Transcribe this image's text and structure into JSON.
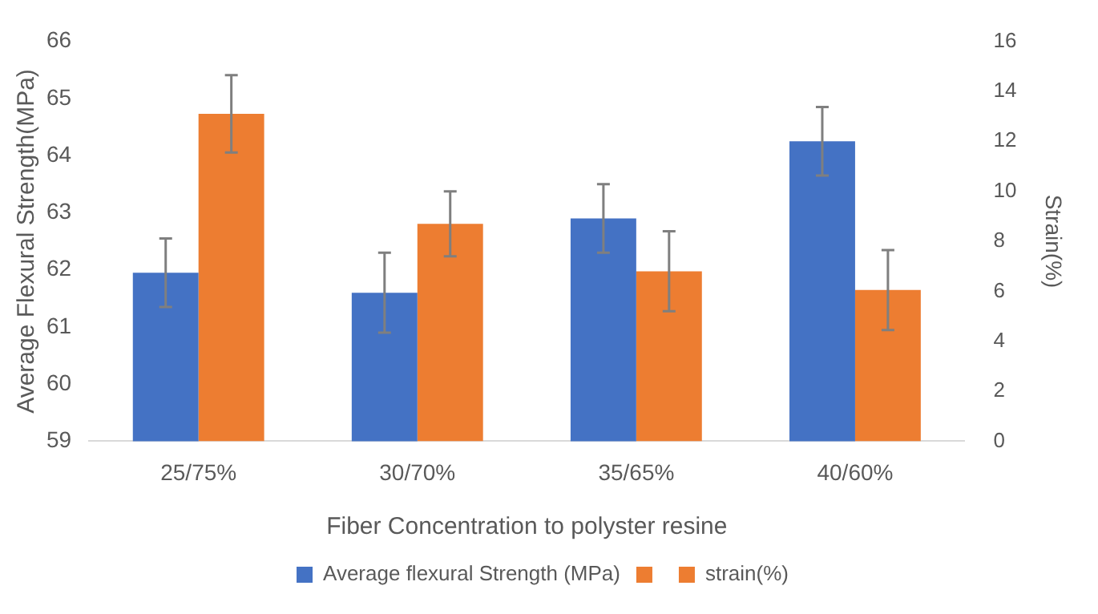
{
  "chart_data": {
    "type": "bar",
    "xlabel": "Fiber Concentration to polyster resine",
    "ylabel": "Average Flexural Strength(MPa)",
    "y2label": "Strain(%)",
    "categories": [
      "25/75%",
      "30/70%",
      "35/65%",
      "40/60%"
    ],
    "series": [
      {
        "name": "Average flexural Strength (MPa)",
        "color": "#4472c4",
        "values": [
          61.95,
          61.6,
          62.9,
          64.25
        ],
        "errors": [
          0.6,
          0.7,
          0.6,
          0.6
        ]
      },
      {
        "name": "strain(%)",
        "color": "#ed7d31",
        "axis": "y2",
        "values": [
          13.1,
          8.7,
          6.8,
          6.05
        ],
        "errors": [
          1.55,
          1.3,
          1.6,
          1.6
        ]
      }
    ],
    "ylim": [
      59,
      66
    ],
    "yticks": [
      59,
      60,
      61,
      62,
      63,
      64,
      65,
      66
    ],
    "y2lim": [
      0,
      16
    ],
    "y2ticks": [
      0,
      2,
      4,
      6,
      8,
      10,
      12,
      14,
      16
    ],
    "grid": false,
    "legend": "bottom"
  }
}
